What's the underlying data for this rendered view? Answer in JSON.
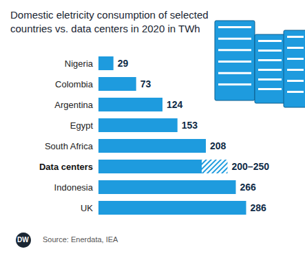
{
  "chart_data": {
    "type": "bar",
    "orientation": "horizontal",
    "title": "Domestic eletricity consumption of selected countries vs. data centers in 2020 in TWh",
    "categories": [
      "Nigeria",
      "Colombia",
      "Argentina",
      "Egypt",
      "South Africa",
      "Data centers",
      "Indonesia",
      "UK"
    ],
    "values": [
      29,
      73,
      124,
      153,
      208,
      200,
      266,
      286
    ],
    "upper_values": [
      null,
      null,
      null,
      null,
      null,
      250,
      null,
      null
    ],
    "value_labels": [
      "29",
      "73",
      "124",
      "153",
      "208",
      "200–250",
      "266",
      "286"
    ],
    "color": "#1e9bde",
    "xlim": [
      0,
      300
    ],
    "data_labels": true,
    "tick_labels": "y",
    "grid": false,
    "source": "Source: Enerdata, IEA",
    "logo": "DW"
  }
}
